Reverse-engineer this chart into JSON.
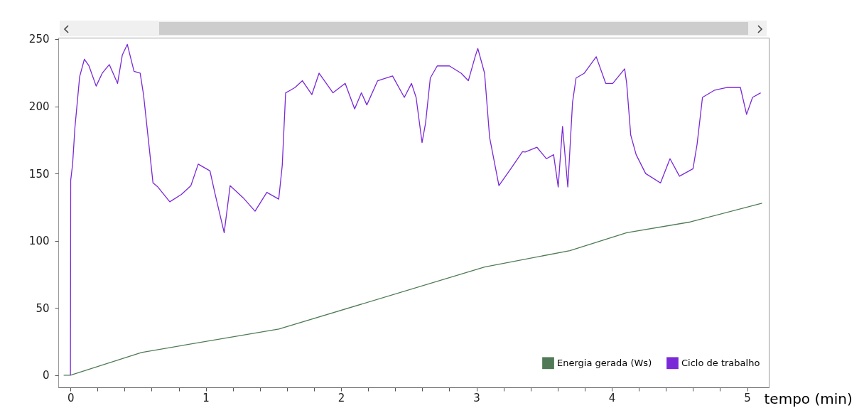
{
  "chart_data": {
    "type": "line",
    "xlabel": "tempo (min)",
    "legend": "bottom right",
    "grid": false,
    "line_style": "solid",
    "marker": "none",
    "xlim": [
      -0.09,
      5.16
    ],
    "ylim": [
      -9,
      251
    ],
    "xticks": [
      0,
      {
        "value": 0.2,
        "label": null
      },
      {
        "value": 0.4,
        "label": null
      },
      {
        "value": 0.6,
        "label": null
      },
      {
        "value": 0.8,
        "label": null
      },
      1,
      {
        "value": 1.2,
        "label": null
      },
      {
        "value": 1.4,
        "label": null
      },
      {
        "value": 1.6,
        "label": null
      },
      {
        "value": 1.8,
        "label": null
      },
      2,
      {
        "value": 2.2,
        "label": null
      },
      {
        "value": 2.4,
        "label": null
      },
      {
        "value": 2.6,
        "label": null
      },
      {
        "value": 2.8,
        "label": null
      },
      3,
      {
        "value": 3.2,
        "label": null
      },
      {
        "value": 3.4,
        "label": null
      },
      {
        "value": 3.6,
        "label": null
      },
      {
        "value": 3.8,
        "label": null
      },
      4,
      {
        "value": 4.2,
        "label": null
      },
      {
        "value": 4.4,
        "label": null
      },
      {
        "value": 4.6,
        "label": null
      },
      {
        "value": 4.8,
        "label": null
      },
      5
    ],
    "yticks": [
      0,
      50,
      100,
      150,
      200,
      250
    ],
    "series": [
      {
        "name": "Energia gerada (Ws)",
        "color": "#4f7a55",
        "x": [
          -0.05,
          0,
          0.525,
          1.54,
          3.06,
          3.69,
          4.11,
          4.58,
          5.11
        ],
        "values": [
          0,
          0,
          17,
          34.4,
          80.5,
          92.7,
          106,
          114,
          128
        ]
      },
      {
        "name": "Ciclo de trabalho",
        "color": "#7a28d8",
        "x": [
          0,
          0.002,
          0.016,
          0.033,
          0.068,
          0.103,
          0.137,
          0.19,
          0.235,
          0.287,
          0.348,
          0.383,
          0.42,
          0.47,
          0.515,
          0.54,
          0.576,
          0.61,
          0.646,
          0.734,
          0.82,
          0.89,
          0.944,
          1.031,
          1.066,
          1.136,
          1.18,
          1.276,
          1.364,
          1.451,
          1.539,
          1.565,
          1.59,
          1.627,
          1.66,
          1.714,
          1.784,
          1.837,
          1.94,
          2.03,
          2.1,
          2.15,
          2.19,
          2.27,
          2.38,
          2.467,
          2.52,
          2.554,
          2.598,
          2.624,
          2.659,
          2.71,
          2.8,
          2.887,
          2.94,
          2.99,
          3.01,
          3.06,
          3.097,
          3.166,
          3.254,
          3.34,
          3.36,
          3.447,
          3.517,
          3.57,
          3.604,
          3.636,
          3.675,
          3.71,
          3.736,
          3.797,
          3.885,
          3.955,
          4.007,
          4.095,
          4.11,
          4.14,
          4.18,
          4.25,
          4.36,
          4.43,
          4.5,
          4.6,
          4.63,
          4.67,
          4.76,
          4.85,
          4.95,
          4.996,
          5.04,
          5.1
        ],
        "values": [
          0,
          145,
          157,
          184,
          222,
          235,
          230,
          215,
          224.6,
          231,
          217,
          238,
          246,
          226,
          224.6,
          208.7,
          175,
          143,
          140,
          129,
          134.5,
          141,
          157,
          152,
          136,
          106,
          141,
          132,
          122,
          136,
          131,
          156,
          210,
          212,
          214,
          219,
          208.7,
          224.6,
          210,
          217,
          198,
          210,
          201,
          219,
          222.5,
          206.6,
          217,
          206.6,
          173,
          187.5,
          221,
          230,
          230,
          224.6,
          219,
          236.8,
          243,
          224.6,
          177,
          141,
          153.6,
          166.3,
          166,
          169.5,
          161,
          164,
          140,
          185,
          140,
          203,
          221,
          224.6,
          236.8,
          217,
          217,
          227.8,
          217,
          178.5,
          164,
          150,
          143,
          161,
          148,
          153.6,
          171.6,
          206.6,
          212,
          214,
          214,
          194,
          206.6,
          210
        ]
      }
    ]
  }
}
